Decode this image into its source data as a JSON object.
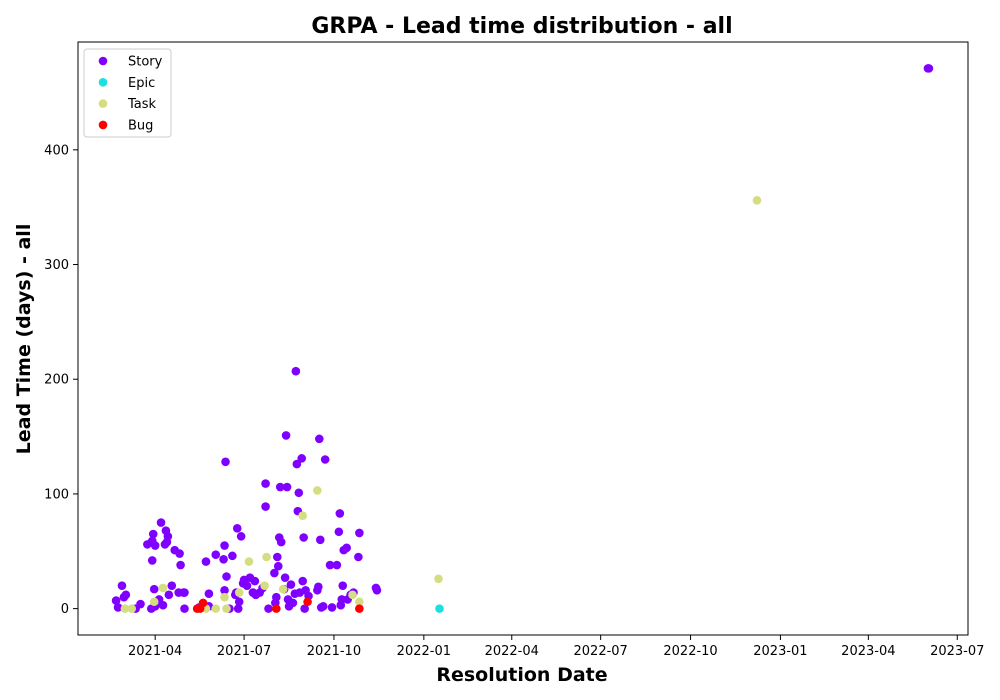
{
  "chart_data": {
    "type": "scatter",
    "title": "GRPA - Lead time distribution - all",
    "xlabel": "Resolution Date",
    "ylabel": "Lead Time (days) - all",
    "x_type": "date",
    "xlim": [
      "2021-01-12",
      "2023-07-12"
    ],
    "ylim": [
      -23,
      494
    ],
    "x_ticks": [
      {
        "date": "2021-04-01",
        "label": "2021-04"
      },
      {
        "date": "2021-07-01",
        "label": "2021-07"
      },
      {
        "date": "2021-10-01",
        "label": "2021-10"
      },
      {
        "date": "2022-01-01",
        "label": "2022-01"
      },
      {
        "date": "2022-04-01",
        "label": "2022-04"
      },
      {
        "date": "2022-07-01",
        "label": "2022-07"
      },
      {
        "date": "2022-10-01",
        "label": "2022-10"
      },
      {
        "date": "2023-01-01",
        "label": "2023-01"
      },
      {
        "date": "2023-04-01",
        "label": "2023-04"
      },
      {
        "date": "2023-07-01",
        "label": "2023-07"
      }
    ],
    "y_ticks": [
      0,
      100,
      200,
      300,
      400
    ],
    "grid": false,
    "legend_position": "top-left",
    "series": [
      {
        "name": "Story",
        "color": "#8000ff",
        "points": [
          [
            "2021-02-20",
            7
          ],
          [
            "2021-02-22",
            1
          ],
          [
            "2021-02-26",
            20
          ],
          [
            "2021-02-28",
            10
          ],
          [
            "2021-03-02",
            12
          ],
          [
            "2021-03-12",
            0
          ],
          [
            "2021-03-17",
            4
          ],
          [
            "2021-03-24",
            56
          ],
          [
            "2021-03-28",
            0
          ],
          [
            "2021-03-29",
            42
          ],
          [
            "2021-03-29",
            59
          ],
          [
            "2021-03-30",
            65
          ],
          [
            "2021-03-31",
            17
          ],
          [
            "2021-04-01",
            2
          ],
          [
            "2021-04-01",
            55
          ],
          [
            "2021-04-05",
            8
          ],
          [
            "2021-04-07",
            75
          ],
          [
            "2021-04-09",
            3
          ],
          [
            "2021-04-11",
            56
          ],
          [
            "2021-04-12",
            68
          ],
          [
            "2021-04-13",
            58
          ],
          [
            "2021-04-14",
            63
          ],
          [
            "2021-04-15",
            12
          ],
          [
            "2021-04-18",
            20
          ],
          [
            "2021-04-21",
            51
          ],
          [
            "2021-04-25",
            14
          ],
          [
            "2021-04-26",
            48
          ],
          [
            "2021-04-27",
            38
          ],
          [
            "2021-04-30",
            14
          ],
          [
            "2021-05-01",
            0
          ],
          [
            "2021-05-01",
            14
          ],
          [
            "2021-05-16",
            1
          ],
          [
            "2021-05-23",
            41
          ],
          [
            "2021-05-26",
            2
          ],
          [
            "2021-05-26",
            13
          ],
          [
            "2021-06-02",
            47
          ],
          [
            "2021-06-10",
            43
          ],
          [
            "2021-06-11",
            16
          ],
          [
            "2021-06-11",
            55
          ],
          [
            "2021-06-12",
            128
          ],
          [
            "2021-06-13",
            28
          ],
          [
            "2021-06-16",
            0
          ],
          [
            "2021-06-19",
            46
          ],
          [
            "2021-06-22",
            12
          ],
          [
            "2021-06-23",
            14
          ],
          [
            "2021-06-24",
            70
          ],
          [
            "2021-06-25",
            0
          ],
          [
            "2021-06-26",
            6
          ],
          [
            "2021-06-28",
            63
          ],
          [
            "2021-06-30",
            22
          ],
          [
            "2021-07-01",
            25
          ],
          [
            "2021-07-04",
            20
          ],
          [
            "2021-07-07",
            27
          ],
          [
            "2021-07-10",
            14
          ],
          [
            "2021-07-12",
            24
          ],
          [
            "2021-07-13",
            12
          ],
          [
            "2021-07-17",
            14
          ],
          [
            "2021-07-20",
            18
          ],
          [
            "2021-07-23",
            109
          ],
          [
            "2021-07-23",
            89
          ],
          [
            "2021-07-26",
            0
          ],
          [
            "2021-08-01",
            31
          ],
          [
            "2021-08-02",
            5
          ],
          [
            "2021-08-03",
            10
          ],
          [
            "2021-08-04",
            45
          ],
          [
            "2021-08-05",
            37
          ],
          [
            "2021-08-06",
            62
          ],
          [
            "2021-08-07",
            106
          ],
          [
            "2021-08-08",
            58
          ],
          [
            "2021-08-11",
            17
          ],
          [
            "2021-08-12",
            27
          ],
          [
            "2021-08-13",
            151
          ],
          [
            "2021-08-14",
            106
          ],
          [
            "2021-08-15",
            8
          ],
          [
            "2021-08-16",
            2
          ],
          [
            "2021-08-18",
            21
          ],
          [
            "2021-08-20",
            5
          ],
          [
            "2021-08-22",
            13
          ],
          [
            "2021-08-23",
            207
          ],
          [
            "2021-08-24",
            126
          ],
          [
            "2021-08-25",
            85
          ],
          [
            "2021-08-26",
            101
          ],
          [
            "2021-08-27",
            14
          ],
          [
            "2021-08-29",
            131
          ],
          [
            "2021-08-30",
            24
          ],
          [
            "2021-08-31",
            62
          ],
          [
            "2021-09-01",
            0
          ],
          [
            "2021-09-02",
            16
          ],
          [
            "2021-09-05",
            11
          ],
          [
            "2021-09-14",
            16
          ],
          [
            "2021-09-15",
            19
          ],
          [
            "2021-09-16",
            148
          ],
          [
            "2021-09-17",
            60
          ],
          [
            "2021-09-18",
            1
          ],
          [
            "2021-09-20",
            2
          ],
          [
            "2021-09-22",
            130
          ],
          [
            "2021-09-27",
            38
          ],
          [
            "2021-09-29",
            1
          ],
          [
            "2021-10-04",
            38
          ],
          [
            "2021-10-06",
            67
          ],
          [
            "2021-10-07",
            83
          ],
          [
            "2021-10-08",
            3
          ],
          [
            "2021-10-09",
            8
          ],
          [
            "2021-10-10",
            20
          ],
          [
            "2021-10-11",
            51
          ],
          [
            "2021-10-14",
            53
          ],
          [
            "2021-10-15",
            8
          ],
          [
            "2021-10-18",
            12
          ],
          [
            "2021-10-21",
            14
          ],
          [
            "2021-10-26",
            45
          ],
          [
            "2021-10-27",
            66
          ],
          [
            "2021-11-13",
            18
          ],
          [
            "2021-11-14",
            16
          ],
          [
            "2023-06-01",
            471
          ],
          [
            "2023-06-02",
            471
          ]
        ]
      },
      {
        "name": "Epic",
        "color": "#1ce0e0",
        "points": [
          [
            "2022-01-17",
            0
          ]
        ]
      },
      {
        "name": "Task",
        "color": "#d4dd80",
        "points": [
          [
            "2021-03-01",
            0
          ],
          [
            "2021-03-08",
            0
          ],
          [
            "2021-03-31",
            6
          ],
          [
            "2021-04-09",
            18
          ],
          [
            "2021-05-14",
            0
          ],
          [
            "2021-05-19",
            1
          ],
          [
            "2021-05-23",
            0
          ],
          [
            "2021-06-02",
            0
          ],
          [
            "2021-06-11",
            10
          ],
          [
            "2021-06-13",
            0
          ],
          [
            "2021-06-26",
            14
          ],
          [
            "2021-07-06",
            41
          ],
          [
            "2021-07-22",
            20
          ],
          [
            "2021-07-24",
            45
          ],
          [
            "2021-08-10",
            17
          ],
          [
            "2021-08-30",
            81
          ],
          [
            "2021-09-14",
            103
          ],
          [
            "2021-10-20",
            12
          ],
          [
            "2021-10-27",
            6
          ],
          [
            "2022-01-16",
            26
          ],
          [
            "2022-12-08",
            356
          ]
        ]
      },
      {
        "name": "Bug",
        "color": "#ff0000",
        "points": [
          [
            "2021-05-14",
            0
          ],
          [
            "2021-05-17",
            0
          ],
          [
            "2021-05-20",
            5
          ],
          [
            "2021-08-03",
            0
          ],
          [
            "2021-09-04",
            6
          ],
          [
            "2021-10-27",
            0
          ]
        ]
      }
    ]
  }
}
